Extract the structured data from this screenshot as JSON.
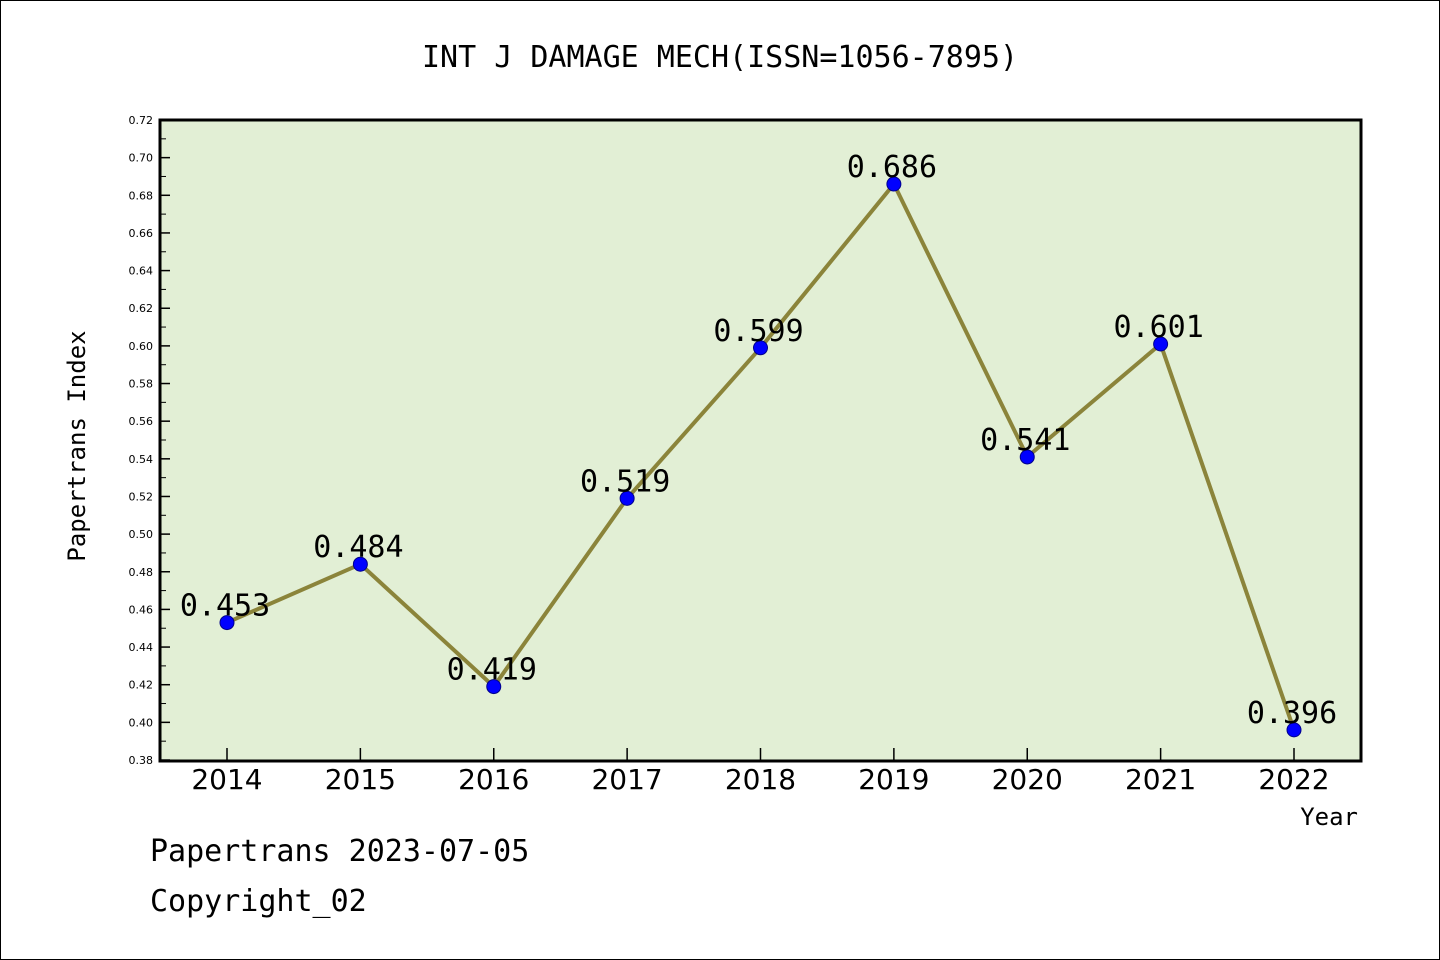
{
  "chart_data": {
    "type": "line",
    "title": "INT J DAMAGE MECH(ISSN=1056-7895)",
    "xlabel": "Year",
    "ylabel": "Papertrans Index",
    "categories": [
      "2014",
      "2015",
      "2016",
      "2017",
      "2018",
      "2019",
      "2020",
      "2021",
      "2022"
    ],
    "values": [
      0.453,
      0.484,
      0.419,
      0.519,
      0.599,
      0.686,
      0.541,
      0.601,
      0.396
    ],
    "value_labels": [
      "0.453",
      "0.484",
      "0.419",
      "0.519",
      "0.599",
      "0.686",
      "0.541",
      "0.601",
      "0.396"
    ],
    "ylim": [
      0.38,
      0.72
    ],
    "yticks": [
      "0.38",
      "0.40",
      "0.42",
      "0.44",
      "0.46",
      "0.48",
      "0.50",
      "0.52",
      "0.54",
      "0.56",
      "0.58",
      "0.60",
      "0.62",
      "0.64",
      "0.66",
      "0.68",
      "0.70",
      "0.72"
    ],
    "grid": false,
    "colors": {
      "plot_background": "#e2efd5",
      "line": "#8b843a",
      "marker": "#0000ff"
    }
  },
  "footer": {
    "line1": "Papertrans 2023-07-05",
    "line2": "Copyright_02"
  }
}
